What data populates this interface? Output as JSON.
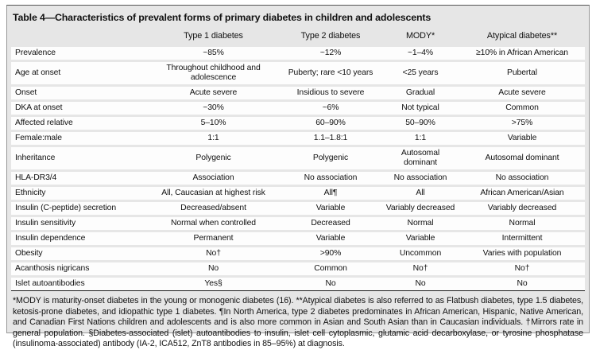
{
  "colors": {
    "panel_bg": "#e6e6e6",
    "row_bg": "#fdfdfd",
    "rule": "#1b1b1b",
    "panel_border": "#979797",
    "text": "#111111"
  },
  "table": {
    "title": "Table 4—Characteristics of prevalent forms of primary diabetes in children and adolescents",
    "columns": {
      "c0": "",
      "c1": "Type 1 diabetes",
      "c2": "Type 2 diabetes",
      "c3": "MODY*",
      "c4": "Atypical diabetes**"
    },
    "rows": [
      {
        "label": "Prevalence",
        "values": [
          "~85%",
          "~12%",
          "~1–4%",
          "≥10% in African American"
        ]
      },
      {
        "label": "Age at onset",
        "values": [
          "Throughout childhood and adolescence",
          "Puberty; rare <10 years",
          "<25 years",
          "Pubertal"
        ]
      },
      {
        "label": "Onset",
        "values": [
          "Acute severe",
          "Insidious to severe",
          "Gradual",
          "Acute severe"
        ]
      },
      {
        "label": "DKA at onset",
        "values": [
          "~30%",
          "~6%",
          "Not typical",
          "Common"
        ]
      },
      {
        "label": "Affected relative",
        "values": [
          "5–10%",
          "60–90%",
          "50–90%",
          ">75%"
        ]
      },
      {
        "label": "Female:male",
        "values": [
          "1:1",
          "1.1–1.8:1",
          "1:1",
          "Variable"
        ]
      },
      {
        "label": "Inheritance",
        "values": [
          "Polygenic",
          "Polygenic",
          "Autosomal\ndominant",
          "Autosomal dominant"
        ]
      },
      {
        "label": "HLA-DR3/4",
        "values": [
          "Association",
          "No association",
          "No association",
          "No association"
        ]
      },
      {
        "label": "Ethnicity",
        "values": [
          "All, Caucasian at highest risk",
          "All¶",
          "All",
          "African American/Asian"
        ]
      },
      {
        "label": "Insulin (C-peptide) secretion",
        "values": [
          "Decreased/absent",
          "Variable",
          "Variably decreased",
          "Variably decreased"
        ]
      },
      {
        "label": "Insulin sensitivity",
        "values": [
          "Normal when controlled",
          "Decreased",
          "Normal",
          "Normal"
        ]
      },
      {
        "label": "Insulin dependence",
        "values": [
          "Permanent",
          "Variable",
          "Variable",
          "Intermittent"
        ]
      },
      {
        "label": "Obesity",
        "values": [
          "No†",
          ">90%",
          "Uncommon",
          "Varies with population"
        ]
      },
      {
        "label": "Acanthosis nigricans",
        "values": [
          "No",
          "Common",
          "No†",
          "No†"
        ]
      },
      {
        "label": "Islet autoantibodies",
        "values": [
          "Yes§",
          "No",
          "No",
          "No"
        ]
      }
    ],
    "footnote": "*MODY is maturity-onset diabetes in the young or monogenic diabetes (16). **Atypical diabetes is also referred to as Flatbush diabetes, type 1.5 diabetes, ketosis-prone diabetes, and idiopathic type 1 diabetes. ¶In North America, type 2 diabetes predominates in African American, Hispanic, Native American, and Canadian First Nations children and adolescents and is also more common in Asian and South Asian than in Caucasian individuals. †Mirrors rate in general population. §Diabetes-associated (islet) autoantibodies to insulin, islet cell cytoplasmic, glutamic acid decarboxylase, or tyrosine phosphatase (insulinoma-associated) antibody (IA-2, ICA512, ZnT8 antibodies in 85–95%) at diagnosis."
  }
}
